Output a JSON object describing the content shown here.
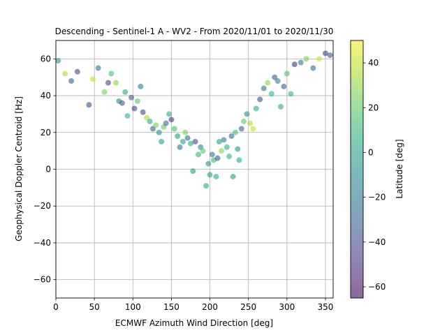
{
  "chart_data": {
    "type": "scatter",
    "title": "Descending - Sentinel-1 A - WV2 - From 2020/11/01 to 2020/11/30",
    "xlabel": "ECMWF Azimuth Wind Direction [deg]",
    "ylabel": "Geophysical Doppler Centroid [Hz]",
    "xlim": [
      0,
      360
    ],
    "ylim": [
      -70,
      70
    ],
    "xticks": [
      0,
      50,
      100,
      150,
      200,
      250,
      300,
      350
    ],
    "yticks": [
      -60,
      -40,
      -20,
      0,
      20,
      40,
      60
    ],
    "grid": true,
    "colorbar": {
      "label": "Latitude [deg]",
      "range": [
        -65,
        50
      ],
      "ticks": [
        -60,
        -40,
        -20,
        0,
        20,
        40
      ],
      "colormap": "viridis",
      "alpha": 0.6
    },
    "points": [
      [
        3,
        59,
        -5
      ],
      [
        12,
        52,
        35
      ],
      [
        20,
        48,
        -30
      ],
      [
        28,
        53,
        -40
      ],
      [
        43,
        35,
        -35
      ],
      [
        48,
        49,
        40
      ],
      [
        55,
        55,
        -20
      ],
      [
        63,
        42,
        25
      ],
      [
        68,
        47,
        -40
      ],
      [
        72,
        52,
        15
      ],
      [
        78,
        47,
        30
      ],
      [
        82,
        37,
        -10
      ],
      [
        86,
        36,
        -30
      ],
      [
        90,
        42,
        5
      ],
      [
        93,
        29,
        10
      ],
      [
        98,
        39,
        -35
      ],
      [
        102,
        33,
        -45
      ],
      [
        106,
        37,
        20
      ],
      [
        110,
        45,
        -15
      ],
      [
        113,
        31,
        -40
      ],
      [
        118,
        28,
        35
      ],
      [
        122,
        26,
        5
      ],
      [
        126,
        22,
        -30
      ],
      [
        130,
        24,
        25
      ],
      [
        134,
        20,
        -10
      ],
      [
        137,
        15,
        0
      ],
      [
        140,
        23,
        20
      ],
      [
        143,
        25,
        -25
      ],
      [
        147,
        30,
        5
      ],
      [
        150,
        27,
        -45
      ],
      [
        154,
        22,
        15
      ],
      [
        158,
        18,
        -5
      ],
      [
        161,
        12,
        -20
      ],
      [
        165,
        15,
        0
      ],
      [
        168,
        20,
        25
      ],
      [
        171,
        17,
        -30
      ],
      [
        175,
        14,
        5
      ],
      [
        178,
        -1,
        0
      ],
      [
        181,
        15,
        -40
      ],
      [
        185,
        8,
        10
      ],
      [
        188,
        12,
        -10
      ],
      [
        191,
        10,
        20
      ],
      [
        195,
        -9,
        5
      ],
      [
        198,
        3,
        -5
      ],
      [
        200,
        -3,
        0
      ],
      [
        203,
        8,
        -20
      ],
      [
        205,
        5,
        10
      ],
      [
        208,
        -4,
        5
      ],
      [
        210,
        6,
        -35
      ],
      [
        212,
        15,
        0
      ],
      [
        215,
        10,
        30
      ],
      [
        218,
        16,
        -15
      ],
      [
        222,
        12,
        5
      ],
      [
        225,
        7,
        10
      ],
      [
        228,
        18,
        -25
      ],
      [
        230,
        -4,
        0
      ],
      [
        233,
        20,
        15
      ],
      [
        236,
        11,
        -5
      ],
      [
        238,
        5,
        5
      ],
      [
        241,
        22,
        -30
      ],
      [
        244,
        26,
        20
      ],
      [
        248,
        30,
        -10
      ],
      [
        252,
        25,
        35
      ],
      [
        256,
        22,
        40
      ],
      [
        260,
        33,
        5
      ],
      [
        265,
        38,
        -40
      ],
      [
        270,
        44,
        -20
      ],
      [
        275,
        47,
        30
      ],
      [
        280,
        41,
        10
      ],
      [
        284,
        50,
        -35
      ],
      [
        288,
        48,
        -15
      ],
      [
        292,
        34,
        5
      ],
      [
        296,
        45,
        -30
      ],
      [
        300,
        52,
        15
      ],
      [
        305,
        41,
        10
      ],
      [
        310,
        57,
        -45
      ],
      [
        318,
        58,
        -20
      ],
      [
        325,
        60,
        25
      ],
      [
        334,
        55,
        -25
      ],
      [
        342,
        60,
        40
      ],
      [
        350,
        63,
        -45
      ],
      [
        356,
        62,
        -35
      ]
    ]
  }
}
